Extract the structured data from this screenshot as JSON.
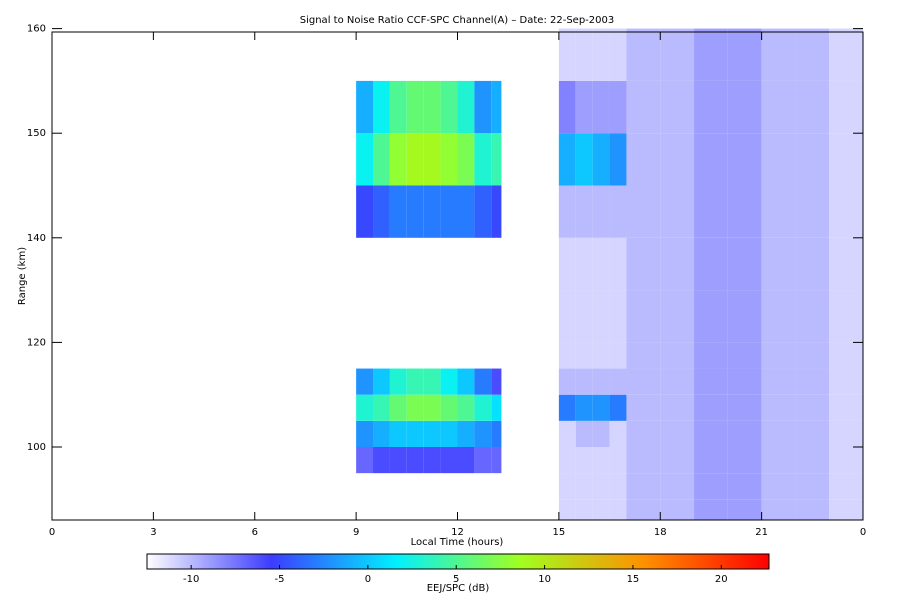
{
  "chart_data": {
    "type": "heatmap",
    "title": "Signal to Noise Ratio CCF-SPC Channel(A) – Date: 22-Sep-2003",
    "xlabel": "Local Time (hours)",
    "ylabel": "Range (km)",
    "xlim": [
      0,
      24
    ],
    "xticks": [
      0,
      3,
      6,
      9,
      12,
      15,
      18,
      21,
      {
        "value": 24,
        "label": "0"
      }
    ],
    "ylim": [
      86,
      160
    ],
    "yticks": [
      100,
      120,
      140,
      150,
      160
    ],
    "xbins": [
      9,
      9.5,
      10,
      10.5,
      11,
      11.5,
      12,
      12.5,
      13,
      13.3,
      15,
      15.5,
      16,
      16.5,
      17,
      18,
      19,
      20,
      21,
      22,
      23,
      24
    ],
    "ybins": [
      86,
      90,
      95,
      100,
      105,
      110,
      115,
      120,
      130,
      140,
      145,
      150,
      155,
      160
    ],
    "z": [
      [
        null,
        null,
        null,
        null,
        null,
        null,
        null,
        null,
        null,
        null,
        -11,
        -11,
        -11,
        -11,
        -10,
        -10,
        -9,
        -9,
        -10,
        -10,
        -11
      ],
      [
        null,
        null,
        null,
        null,
        null,
        null,
        null,
        null,
        null,
        null,
        -11,
        -11,
        -11,
        -11,
        -10,
        -10,
        -9,
        -9,
        -10,
        -10,
        -11
      ],
      [
        -7,
        -6,
        -6,
        -6,
        -6,
        -6,
        -6,
        -7,
        -7,
        null,
        -11,
        -11,
        -11,
        -11,
        -10,
        -10,
        -9,
        -9,
        -10,
        -10,
        -11
      ],
      [
        -2,
        -1,
        0,
        0,
        0,
        0,
        -1,
        -2,
        -3,
        null,
        -11,
        -10,
        -10,
        -11,
        -10,
        -10,
        -9,
        -9,
        -10,
        -10,
        -11
      ],
      [
        3,
        4,
        6,
        7,
        7,
        6,
        5,
        3,
        1,
        null,
        -3,
        -2,
        -2,
        -3,
        -10,
        -10,
        -9,
        -9,
        -10,
        -10,
        -11
      ],
      [
        -2,
        0,
        3,
        4,
        4,
        2,
        0,
        -3,
        -6,
        null,
        -10,
        -10,
        -10,
        -10,
        -10,
        -10,
        -9,
        -9,
        -10,
        -10,
        -11
      ],
      [
        null,
        null,
        null,
        null,
        null,
        null,
        null,
        null,
        null,
        null,
        -11,
        -11,
        -11,
        -11,
        -10,
        -10,
        -9,
        -9,
        -10,
        -10,
        -11
      ],
      [
        null,
        null,
        null,
        null,
        null,
        null,
        null,
        null,
        null,
        null,
        -11,
        -11,
        -11,
        -11,
        -10,
        -10,
        -9,
        -9,
        -10,
        -10,
        -11
      ],
      [
        null,
        null,
        null,
        null,
        null,
        null,
        null,
        null,
        null,
        null,
        -11,
        -11,
        -11,
        -11,
        -10,
        -10,
        -9,
        -9,
        -10,
        -10,
        -11
      ],
      [
        -5,
        -4,
        -3,
        -3,
        -3,
        -3,
        -3,
        -4,
        -5,
        null,
        -10,
        -10,
        -10,
        -10,
        -10,
        -10,
        -9,
        -9,
        -10,
        -10,
        -11
      ],
      [
        2,
        5,
        8,
        9,
        9,
        8,
        7,
        3,
        4,
        null,
        -1,
        0,
        -1,
        -2,
        -10,
        -10,
        -9,
        -9,
        -10,
        -10,
        -11
      ],
      [
        -1,
        2,
        5,
        6,
        6,
        5,
        3,
        -2,
        -1,
        null,
        -8,
        -9,
        -9,
        -9,
        -10,
        -10,
        -9,
        -9,
        -10,
        -10,
        -11
      ],
      [
        null,
        null,
        null,
        null,
        null,
        null,
        null,
        null,
        null,
        null,
        -11,
        -11,
        -11,
        -11,
        -10,
        -10,
        -9,
        -9,
        -10,
        -10,
        -11
      ]
    ],
    "zlim": [
      -12.5,
      22.7
    ],
    "zticks": [
      -10,
      -5,
      0,
      5,
      10,
      15,
      20
    ],
    "zlabel": "EEJ/SPC (dB)",
    "colorscale": [
      "#ffffff",
      "#3c3cff",
      "#00f0ff",
      "#a0ff20",
      "#ff9000",
      "#ff0000"
    ]
  }
}
